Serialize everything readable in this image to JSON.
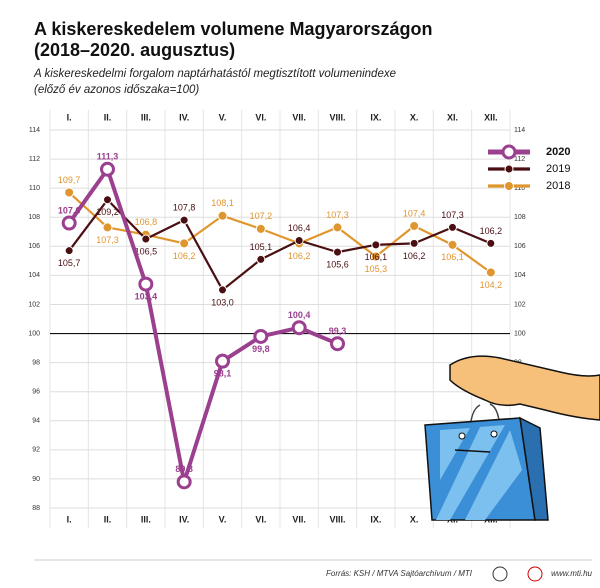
{
  "chart_data": {
    "type": "line",
    "title": [
      "A kiskereskedelem volumene Magyarországon",
      "(2018–2020. augusztus)"
    ],
    "subtitle": [
      "A kiskereskedelmi forgalom naptárhatástól megtisztított volumenindexe",
      "(előző év azonos időszaka=100)"
    ],
    "categories": [
      "I.",
      "II.",
      "III.",
      "IV.",
      "V.",
      "VI.",
      "VII.",
      "VIII.",
      "IX.",
      "X.",
      "XI.",
      "XII."
    ],
    "series": [
      {
        "name": "2020",
        "color": "#9b3f8f",
        "values": [
          107.6,
          111.3,
          103.4,
          89.8,
          98.1,
          99.8,
          100.4,
          99.3,
          null,
          null,
          null,
          null
        ],
        "value_labels": [
          "107,6",
          "111,3",
          "103,4",
          "89,8",
          "98,1",
          "99,8",
          "100,4",
          "99,3",
          null,
          null,
          null,
          null
        ]
      },
      {
        "name": "2019",
        "color": "#4a0f12",
        "values": [
          105.7,
          109.2,
          106.5,
          107.8,
          103.0,
          105.1,
          106.4,
          105.6,
          106.1,
          106.2,
          107.3,
          106.2
        ],
        "value_labels": [
          "105,7",
          "109,2",
          "106,5",
          "107,8",
          "103,0",
          "105,1",
          "106,4",
          "105,6",
          "106,1",
          "106,2",
          "107,3",
          "106,2"
        ]
      },
      {
        "name": "2018",
        "color": "#e0962e",
        "values": [
          109.7,
          107.3,
          106.8,
          106.2,
          108.1,
          107.2,
          106.2,
          107.3,
          105.3,
          107.4,
          106.1,
          104.2
        ],
        "value_labels": [
          "109,7",
          "107,3",
          "106,8",
          "106,2",
          "108,1",
          "107,2",
          "106,2",
          "107,3",
          "105,3",
          "107,4",
          "106,1",
          "104,2"
        ]
      }
    ],
    "ylim": [
      88,
      114
    ],
    "yticks": [
      88,
      90,
      92,
      94,
      96,
      98,
      100,
      102,
      104,
      106,
      108,
      110,
      112,
      114
    ],
    "reference_line": 100,
    "grid": true,
    "legend": "top-right",
    "source": "Forrás: KSH / MTVA Sajtóarchívum / MTI",
    "website": "www.mti.hu"
  }
}
